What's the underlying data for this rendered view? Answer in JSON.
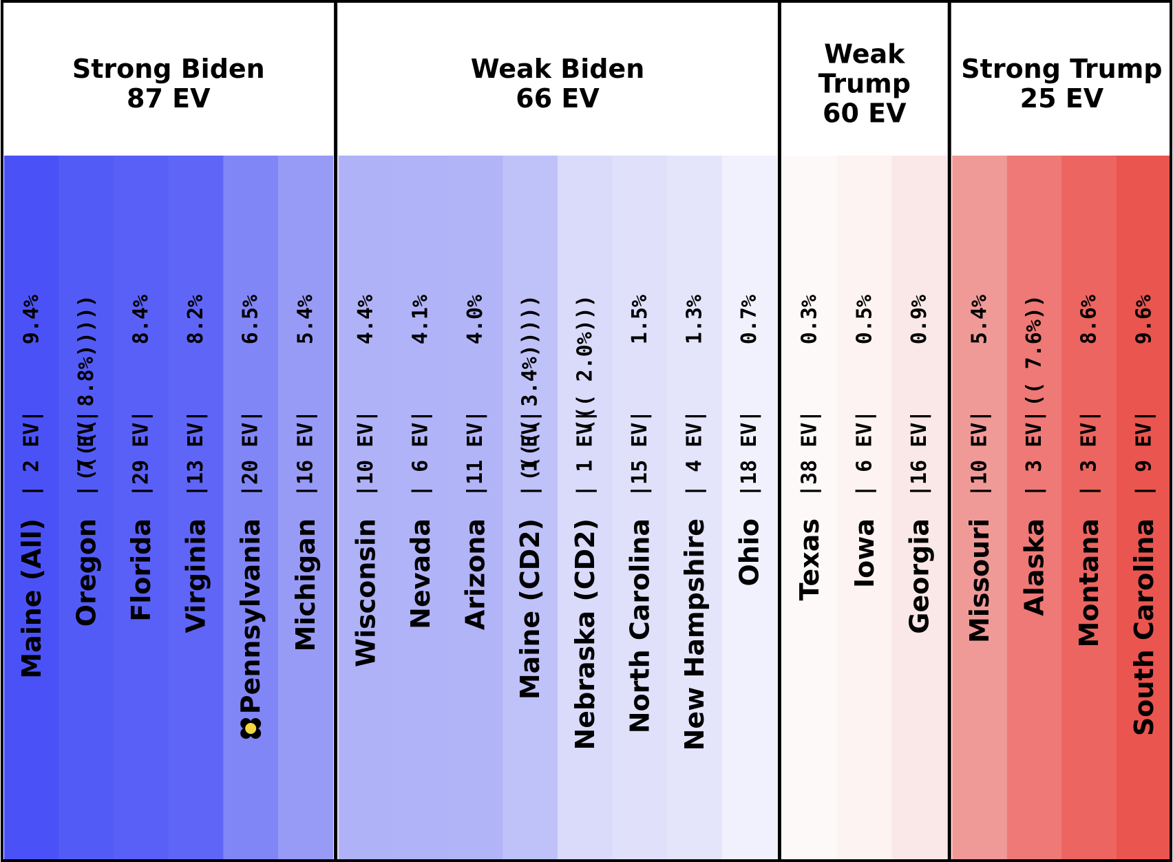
{
  "chart_data": {
    "type": "table",
    "groups": [
      {
        "title_line1": "Strong Biden",
        "title_line2": "",
        "ev_label": "87 EV",
        "states": [
          {
            "name": "Maine (All)",
            "ev": "2",
            "margin": "9.4%",
            "color": "#4a52f7"
          },
          {
            "name": "Oregon",
            "ev": "7",
            "margin": "8.8%",
            "parens": 5,
            "color": "#535bf7"
          },
          {
            "name": "Florida",
            "ev": "29",
            "margin": "8.4%",
            "color": "#5960f7"
          },
          {
            "name": "Virginia",
            "ev": "13",
            "margin": "8.2%",
            "color": "#5f66f7"
          },
          {
            "name": "Pennsylvania",
            "ev": "20",
            "margin": "6.5%",
            "color": "#8186f7",
            "marker": true
          },
          {
            "name": "Michigan",
            "ev": "16",
            "margin": "5.4%",
            "color": "#989bf6"
          }
        ]
      },
      {
        "title_line1": "Weak Biden",
        "title_line2": "",
        "ev_label": "66 EV",
        "states": [
          {
            "name": "Wisconsin",
            "ev": "10",
            "margin": "4.4%",
            "color": "#b0b2f8"
          },
          {
            "name": "Nevada",
            "ev": "6",
            "margin": "4.1%",
            "color": "#b1b3f8"
          },
          {
            "name": "Arizona",
            "ev": "11",
            "margin": "4.0%",
            "color": "#b2b4f8"
          },
          {
            "name": "Maine (CD2)",
            "ev": "1",
            "margin": "3.4%",
            "parens": 5,
            "color": "#bfc1f9"
          },
          {
            "name": "Nebraska (CD2)",
            "ev": "1",
            "margin": "2.0%",
            "parens": 3,
            "color": "#dadbfb"
          },
          {
            "name": "North Carolina",
            "ev": "15",
            "margin": "1.5%",
            "color": "#e0e0fb"
          },
          {
            "name": "New Hampshire",
            "ev": "4",
            "margin": "1.3%",
            "color": "#e4e4fb"
          },
          {
            "name": "Ohio",
            "ev": "18",
            "margin": "0.7%",
            "color": "#f1f1fd"
          }
        ]
      },
      {
        "title_line1": "Weak",
        "title_line2": "Trump",
        "ev_label": "60 EV",
        "states": [
          {
            "name": "Texas",
            "ev": "38",
            "margin": "0.3%",
            "color": "#fdf9f8"
          },
          {
            "name": "Iowa",
            "ev": "6",
            "margin": "0.5%",
            "color": "#fcf3f2"
          },
          {
            "name": "Georgia",
            "ev": "16",
            "margin": "0.9%",
            "color": "#f9e8e7"
          }
        ]
      },
      {
        "title_line1": "Strong Trump",
        "title_line2": "",
        "ev_label": "25 EV",
        "states": [
          {
            "name": "Missouri",
            "ev": "10",
            "margin": "5.4%",
            "color": "#f09a98"
          },
          {
            "name": "Alaska",
            "ev": "3",
            "margin": "7.6%",
            "parens": 2,
            "color": "#ee7976"
          },
          {
            "name": "Montana",
            "ev": "3",
            "margin": "8.6%",
            "color": "#ec6560"
          },
          {
            "name": "South Carolina",
            "ev": "9",
            "margin": "9.6%",
            "color": "#ea554f"
          }
        ]
      }
    ]
  }
}
